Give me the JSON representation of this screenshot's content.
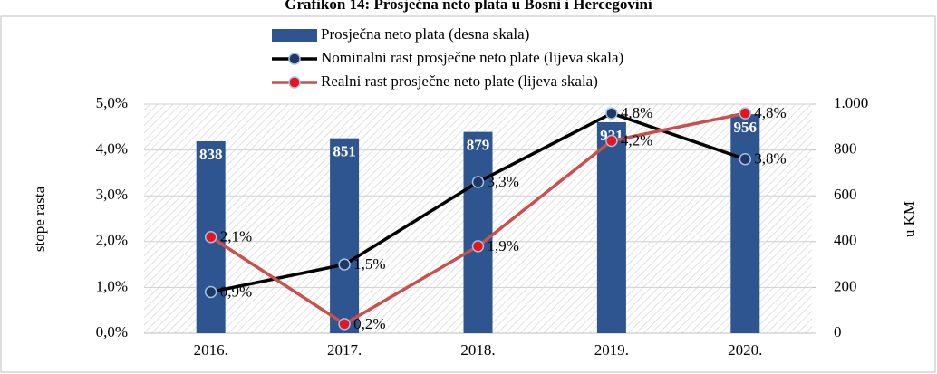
{
  "chart_data": {
    "type": "bar_line",
    "title": "Grafikon 14: Prosječna neto plata u Bosni i Hercegovini",
    "categories": [
      "2016.",
      "2017.",
      "2018.",
      "2019.",
      "2020."
    ],
    "y_label": "stope rasta",
    "y2_label": "u KM",
    "ylim": [
      0,
      5
    ],
    "yticks": [
      {
        "value": 0,
        "label": "0,0%"
      },
      {
        "value": 1,
        "label": "1,0%"
      },
      {
        "value": 2,
        "label": "2,0%"
      },
      {
        "value": 3,
        "label": "3,0%"
      },
      {
        "value": 4,
        "label": "4,0%"
      },
      {
        "value": 5,
        "label": "5,0%"
      }
    ],
    "y2lim": [
      0,
      1000
    ],
    "y2ticks": [
      0,
      200,
      400,
      600,
      800,
      {
        "value": 1000,
        "label": "1.000"
      }
    ],
    "series": [
      {
        "name": "Prosječna neto plata (desna skala)",
        "type": "bar",
        "axis": "y2",
        "color": "#2e5590",
        "values": [
          838,
          851,
          879,
          921,
          956
        ]
      },
      {
        "name": "Nominalni rast prosječne neto plate (lijeva skala)",
        "type": "line",
        "color": "#000000",
        "marker_color": "#1f3864",
        "values": [
          0.9,
          1.5,
          3.3,
          4.8,
          3.8
        ],
        "value_labels": [
          "0,9%",
          "1,5%",
          "3,3%",
          "4,8%",
          "3,8%"
        ]
      },
      {
        "name": "Realni rast prosječne neto plate (lijeva skala)",
        "type": "line",
        "color": "#c9504c",
        "marker_color": "#e8141b",
        "values": [
          2.1,
          0.2,
          1.9,
          4.2,
          4.8
        ],
        "value_labels": [
          "2,1%",
          "0,2%",
          "1,9%",
          "4,2%",
          "4,8%"
        ]
      }
    ]
  }
}
